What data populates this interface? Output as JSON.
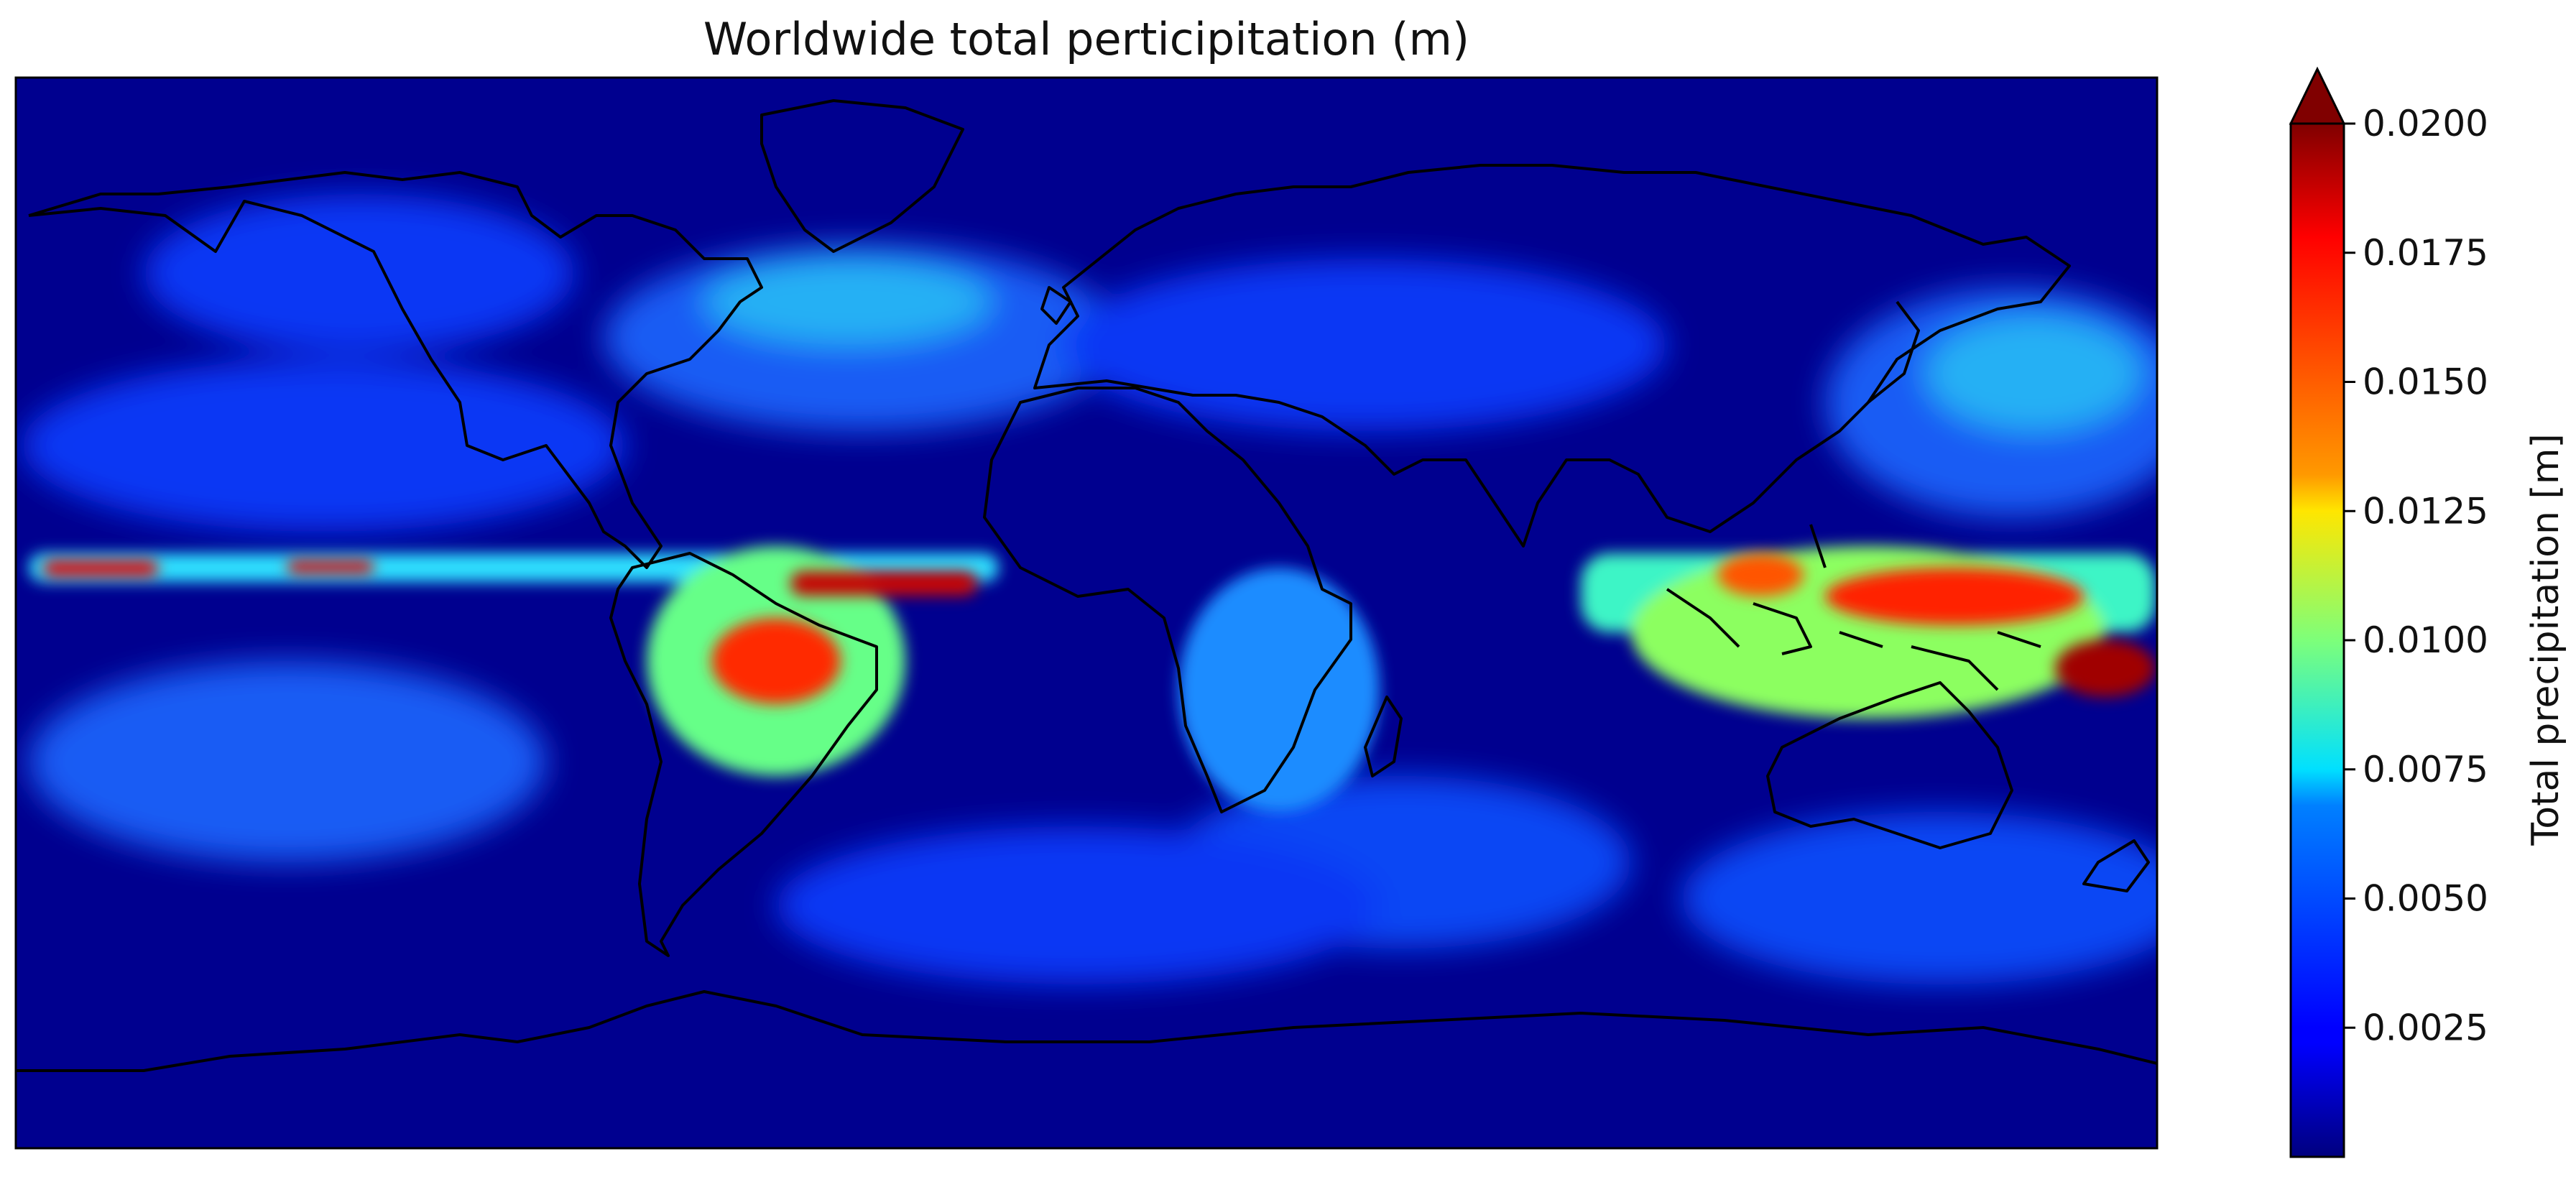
{
  "figure": {
    "title": "Worldwide total perticipitation (m)"
  },
  "map": {
    "projection": "plate-carree",
    "background_color": "#00008f",
    "coastline_color": "#000000"
  },
  "colorbar": {
    "label": "Total precipitation [m]",
    "colormap": "jet",
    "extend": "max",
    "range": [
      0.0,
      0.02
    ],
    "ticks": [
      "0.0200",
      "0.0175",
      "0.0150",
      "0.0125",
      "0.0100",
      "0.0075",
      "0.0050",
      "0.0025"
    ],
    "tick_values": [
      0.02,
      0.0175,
      0.015,
      0.0125,
      0.01,
      0.0075,
      0.005,
      0.0025
    ],
    "overflow_color": "#800000"
  }
}
